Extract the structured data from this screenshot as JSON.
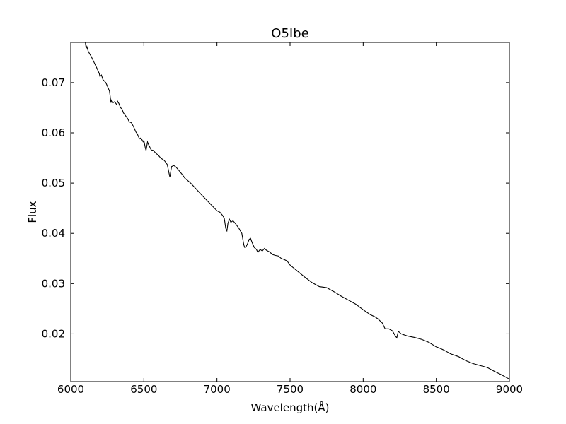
{
  "chart_data": {
    "type": "line",
    "title": "O5Ibe",
    "xlabel": "Wavelength(Å)",
    "ylabel": "Flux",
    "xlim": [
      6000,
      9000
    ],
    "ylim": [
      0.0105,
      0.078
    ],
    "x_ticks": [
      6000,
      6500,
      7000,
      7500,
      8000,
      8500,
      9000
    ],
    "y_ticks": [
      0.02,
      0.03,
      0.04,
      0.05,
      0.06,
      0.07
    ],
    "grid": false,
    "legend": "none",
    "series": [
      {
        "color": "#000000",
        "points": [
          [
            6100,
            0.078
          ],
          [
            6105,
            0.0768
          ],
          [
            6110,
            0.0772
          ],
          [
            6120,
            0.0762
          ],
          [
            6140,
            0.0752
          ],
          [
            6160,
            0.074
          ],
          [
            6180,
            0.0728
          ],
          [
            6195,
            0.0718
          ],
          [
            6200,
            0.0712
          ],
          [
            6210,
            0.0715
          ],
          [
            6220,
            0.0706
          ],
          [
            6240,
            0.07
          ],
          [
            6255,
            0.069
          ],
          [
            6265,
            0.0683
          ],
          [
            6270,
            0.0672
          ],
          [
            6275,
            0.066
          ],
          [
            6280,
            0.0665
          ],
          [
            6290,
            0.066
          ],
          [
            6300,
            0.0662
          ],
          [
            6315,
            0.0656
          ],
          [
            6320,
            0.0663
          ],
          [
            6330,
            0.0658
          ],
          [
            6340,
            0.065
          ],
          [
            6350,
            0.0648
          ],
          [
            6360,
            0.064
          ],
          [
            6380,
            0.0632
          ],
          [
            6390,
            0.0628
          ],
          [
            6400,
            0.0622
          ],
          [
            6415,
            0.062
          ],
          [
            6430,
            0.0612
          ],
          [
            6445,
            0.0602
          ],
          [
            6455,
            0.0598
          ],
          [
            6470,
            0.0588
          ],
          [
            6480,
            0.059
          ],
          [
            6495,
            0.0582
          ],
          [
            6500,
            0.0585
          ],
          [
            6510,
            0.057
          ],
          [
            6515,
            0.0565
          ],
          [
            6525,
            0.0582
          ],
          [
            6530,
            0.0578
          ],
          [
            6540,
            0.0572
          ],
          [
            6550,
            0.0566
          ],
          [
            6565,
            0.0565
          ],
          [
            6580,
            0.056
          ],
          [
            6600,
            0.0555
          ],
          [
            6615,
            0.055
          ],
          [
            6640,
            0.0545
          ],
          [
            6660,
            0.0537
          ],
          [
            6672,
            0.052
          ],
          [
            6678,
            0.0512
          ],
          [
            6685,
            0.0525
          ],
          [
            6690,
            0.0533
          ],
          [
            6705,
            0.0535
          ],
          [
            6720,
            0.0532
          ],
          [
            6740,
            0.0525
          ],
          [
            6760,
            0.0518
          ],
          [
            6780,
            0.051
          ],
          [
            6820,
            0.05
          ],
          [
            6900,
            0.0475
          ],
          [
            7000,
            0.0445
          ],
          [
            7020,
            0.0442
          ],
          [
            7040,
            0.0435
          ],
          [
            7050,
            0.043
          ],
          [
            7060,
            0.041
          ],
          [
            7068,
            0.0405
          ],
          [
            7075,
            0.042
          ],
          [
            7085,
            0.0428
          ],
          [
            7095,
            0.0422
          ],
          [
            7110,
            0.0425
          ],
          [
            7130,
            0.0418
          ],
          [
            7150,
            0.041
          ],
          [
            7170,
            0.04
          ],
          [
            7180,
            0.0383
          ],
          [
            7185,
            0.0376
          ],
          [
            7190,
            0.0372
          ],
          [
            7200,
            0.0374
          ],
          [
            7210,
            0.038
          ],
          [
            7220,
            0.0388
          ],
          [
            7230,
            0.039
          ],
          [
            7240,
            0.0382
          ],
          [
            7255,
            0.0372
          ],
          [
            7270,
            0.0368
          ],
          [
            7280,
            0.0362
          ],
          [
            7295,
            0.0368
          ],
          [
            7310,
            0.0365
          ],
          [
            7325,
            0.037
          ],
          [
            7340,
            0.0366
          ],
          [
            7360,
            0.0363
          ],
          [
            7380,
            0.0358
          ],
          [
            7400,
            0.0356
          ],
          [
            7420,
            0.0355
          ],
          [
            7440,
            0.035
          ],
          [
            7460,
            0.0348
          ],
          [
            7480,
            0.0345
          ],
          [
            7500,
            0.0337
          ],
          [
            7550,
            0.0325
          ],
          [
            7600,
            0.0313
          ],
          [
            7650,
            0.0302
          ],
          [
            7700,
            0.0294
          ],
          [
            7750,
            0.0292
          ],
          [
            7800,
            0.0284
          ],
          [
            7850,
            0.0275
          ],
          [
            7900,
            0.0267
          ],
          [
            7950,
            0.0259
          ],
          [
            8000,
            0.0248
          ],
          [
            8050,
            0.0238
          ],
          [
            8080,
            0.0234
          ],
          [
            8100,
            0.023
          ],
          [
            8130,
            0.0222
          ],
          [
            8150,
            0.021
          ],
          [
            8175,
            0.021
          ],
          [
            8200,
            0.0206
          ],
          [
            8220,
            0.0196
          ],
          [
            8230,
            0.0192
          ],
          [
            8240,
            0.0205
          ],
          [
            8260,
            0.02
          ],
          [
            8300,
            0.0196
          ],
          [
            8350,
            0.0193
          ],
          [
            8400,
            0.0189
          ],
          [
            8450,
            0.0183
          ],
          [
            8500,
            0.0174
          ],
          [
            8520,
            0.0172
          ],
          [
            8550,
            0.0168
          ],
          [
            8600,
            0.016
          ],
          [
            8650,
            0.0155
          ],
          [
            8700,
            0.0147
          ],
          [
            8750,
            0.0141
          ],
          [
            8800,
            0.0137
          ],
          [
            8850,
            0.0133
          ],
          [
            8900,
            0.0125
          ],
          [
            8950,
            0.0118
          ],
          [
            8980,
            0.0113
          ],
          [
            9000,
            0.011
          ]
        ]
      }
    ]
  }
}
